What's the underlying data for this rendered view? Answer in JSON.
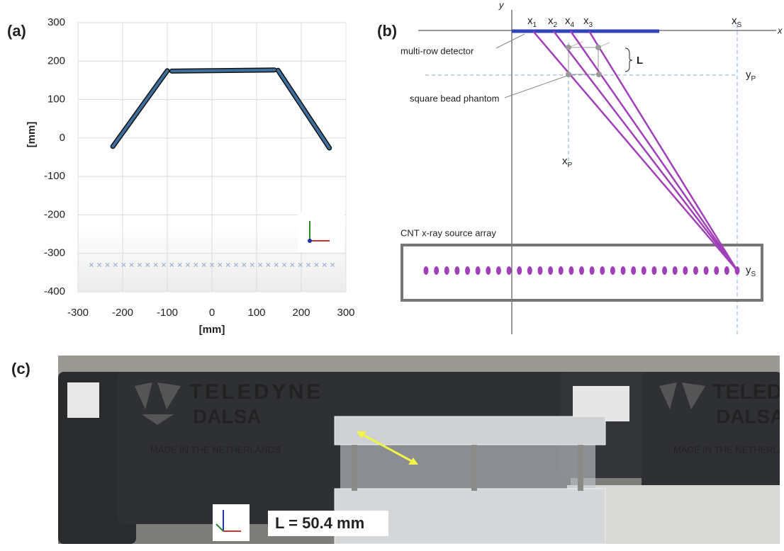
{
  "labels": [
    "(a)",
    "(b)",
    "(c)"
  ],
  "chart_data": {
    "type": "line",
    "xlabel": "[mm]",
    "ylabel": "[mm]",
    "xlim": [
      -300,
      300
    ],
    "xticks": [
      -300,
      -200,
      -100,
      0,
      100,
      200,
      300
    ],
    "ylim": [
      -400,
      300
    ],
    "yticks": [
      -400,
      -300,
      -200,
      -100,
      0,
      100,
      200,
      300
    ],
    "grid": true,
    "series": [
      {
        "color": "#3d6e9e",
        "x": [
          -222,
          -100,
          null,
          -90,
          140,
          null,
          148,
          263
        ],
        "values": [
          -22,
          175,
          null,
          174,
          177,
          null,
          176,
          -26
        ]
      },
      {
        "color": "#9fb7d8",
        "marker": "x",
        "x": [
          -270,
          -252,
          -234,
          -216,
          -198,
          -180,
          -162,
          -144,
          -126,
          -108,
          -90,
          -72,
          -54,
          -36,
          -18,
          0,
          18,
          36,
          54,
          72,
          90,
          108,
          126,
          144,
          162,
          180,
          198,
          216,
          234,
          252,
          270
        ],
        "values": [
          -330,
          -330,
          -330,
          -330,
          -330,
          -330,
          -330,
          -330,
          -330,
          -330,
          -330,
          -330,
          -330,
          -330,
          -330,
          -330,
          -330,
          -330,
          -330,
          -330,
          -330,
          -330,
          -330,
          -330,
          -330,
          -330,
          -330,
          -330,
          -330,
          -330,
          -330
        ]
      }
    ]
  },
  "diagram": {
    "axis_x": "x",
    "axis_y": "y",
    "detector_labels": [
      {
        "base": "x",
        "sub": "1"
      },
      {
        "base": "x",
        "sub": "2"
      },
      {
        "base": "x",
        "sub": "4"
      },
      {
        "base": "x",
        "sub": "3"
      }
    ],
    "source_x": {
      "base": "x",
      "sub": "S"
    },
    "phantom_y": {
      "base": "y",
      "sub": "P"
    },
    "phantom_x": {
      "base": "x",
      "sub": "P"
    },
    "source_y": {
      "base": "y",
      "sub": "S"
    },
    "detector": "multi-row detector",
    "phantom": "square bead phantom",
    "spacing": "L",
    "source_array": "CNT x-ray source array"
  },
  "photo": {
    "brand": "TELEDYNE",
    "brand_2": "DALSA",
    "made_in": "MADE IN THE NETHERLANDS",
    "measurement": "L = 50.4 mm"
  }
}
